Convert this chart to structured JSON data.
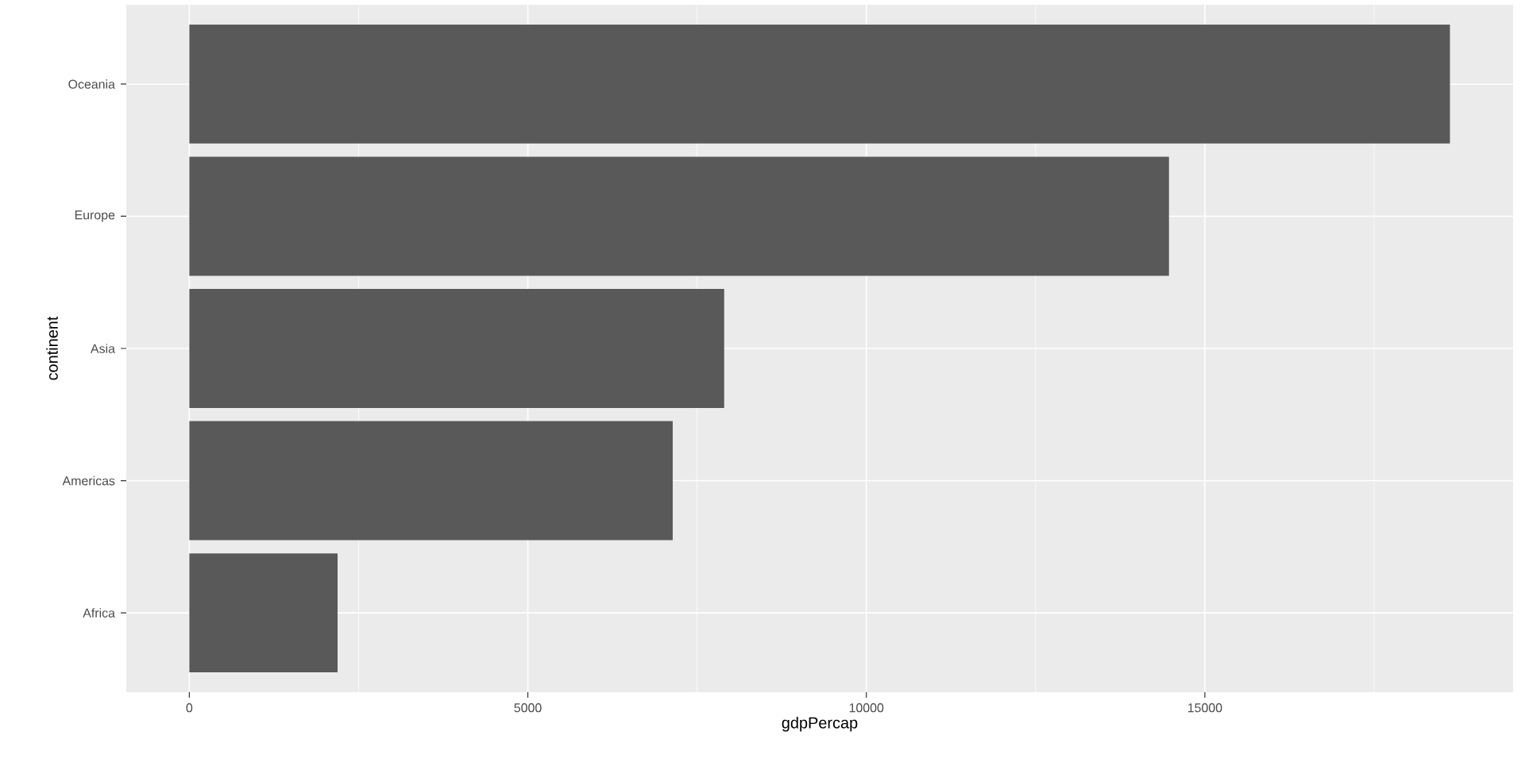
{
  "chart_data": {
    "type": "bar",
    "orientation": "horizontal",
    "categories": [
      "Oceania",
      "Europe",
      "Asia",
      "Americas",
      "Africa"
    ],
    "values": [
      18620,
      14470,
      7900,
      7140,
      2190
    ],
    "color": "#595959",
    "xlim": [
      -931,
      19553
    ],
    "xticks": [
      0,
      5000,
      10000,
      15000
    ],
    "xlabel": "gdpPercap",
    "ylabel": "continent",
    "grid": true
  }
}
